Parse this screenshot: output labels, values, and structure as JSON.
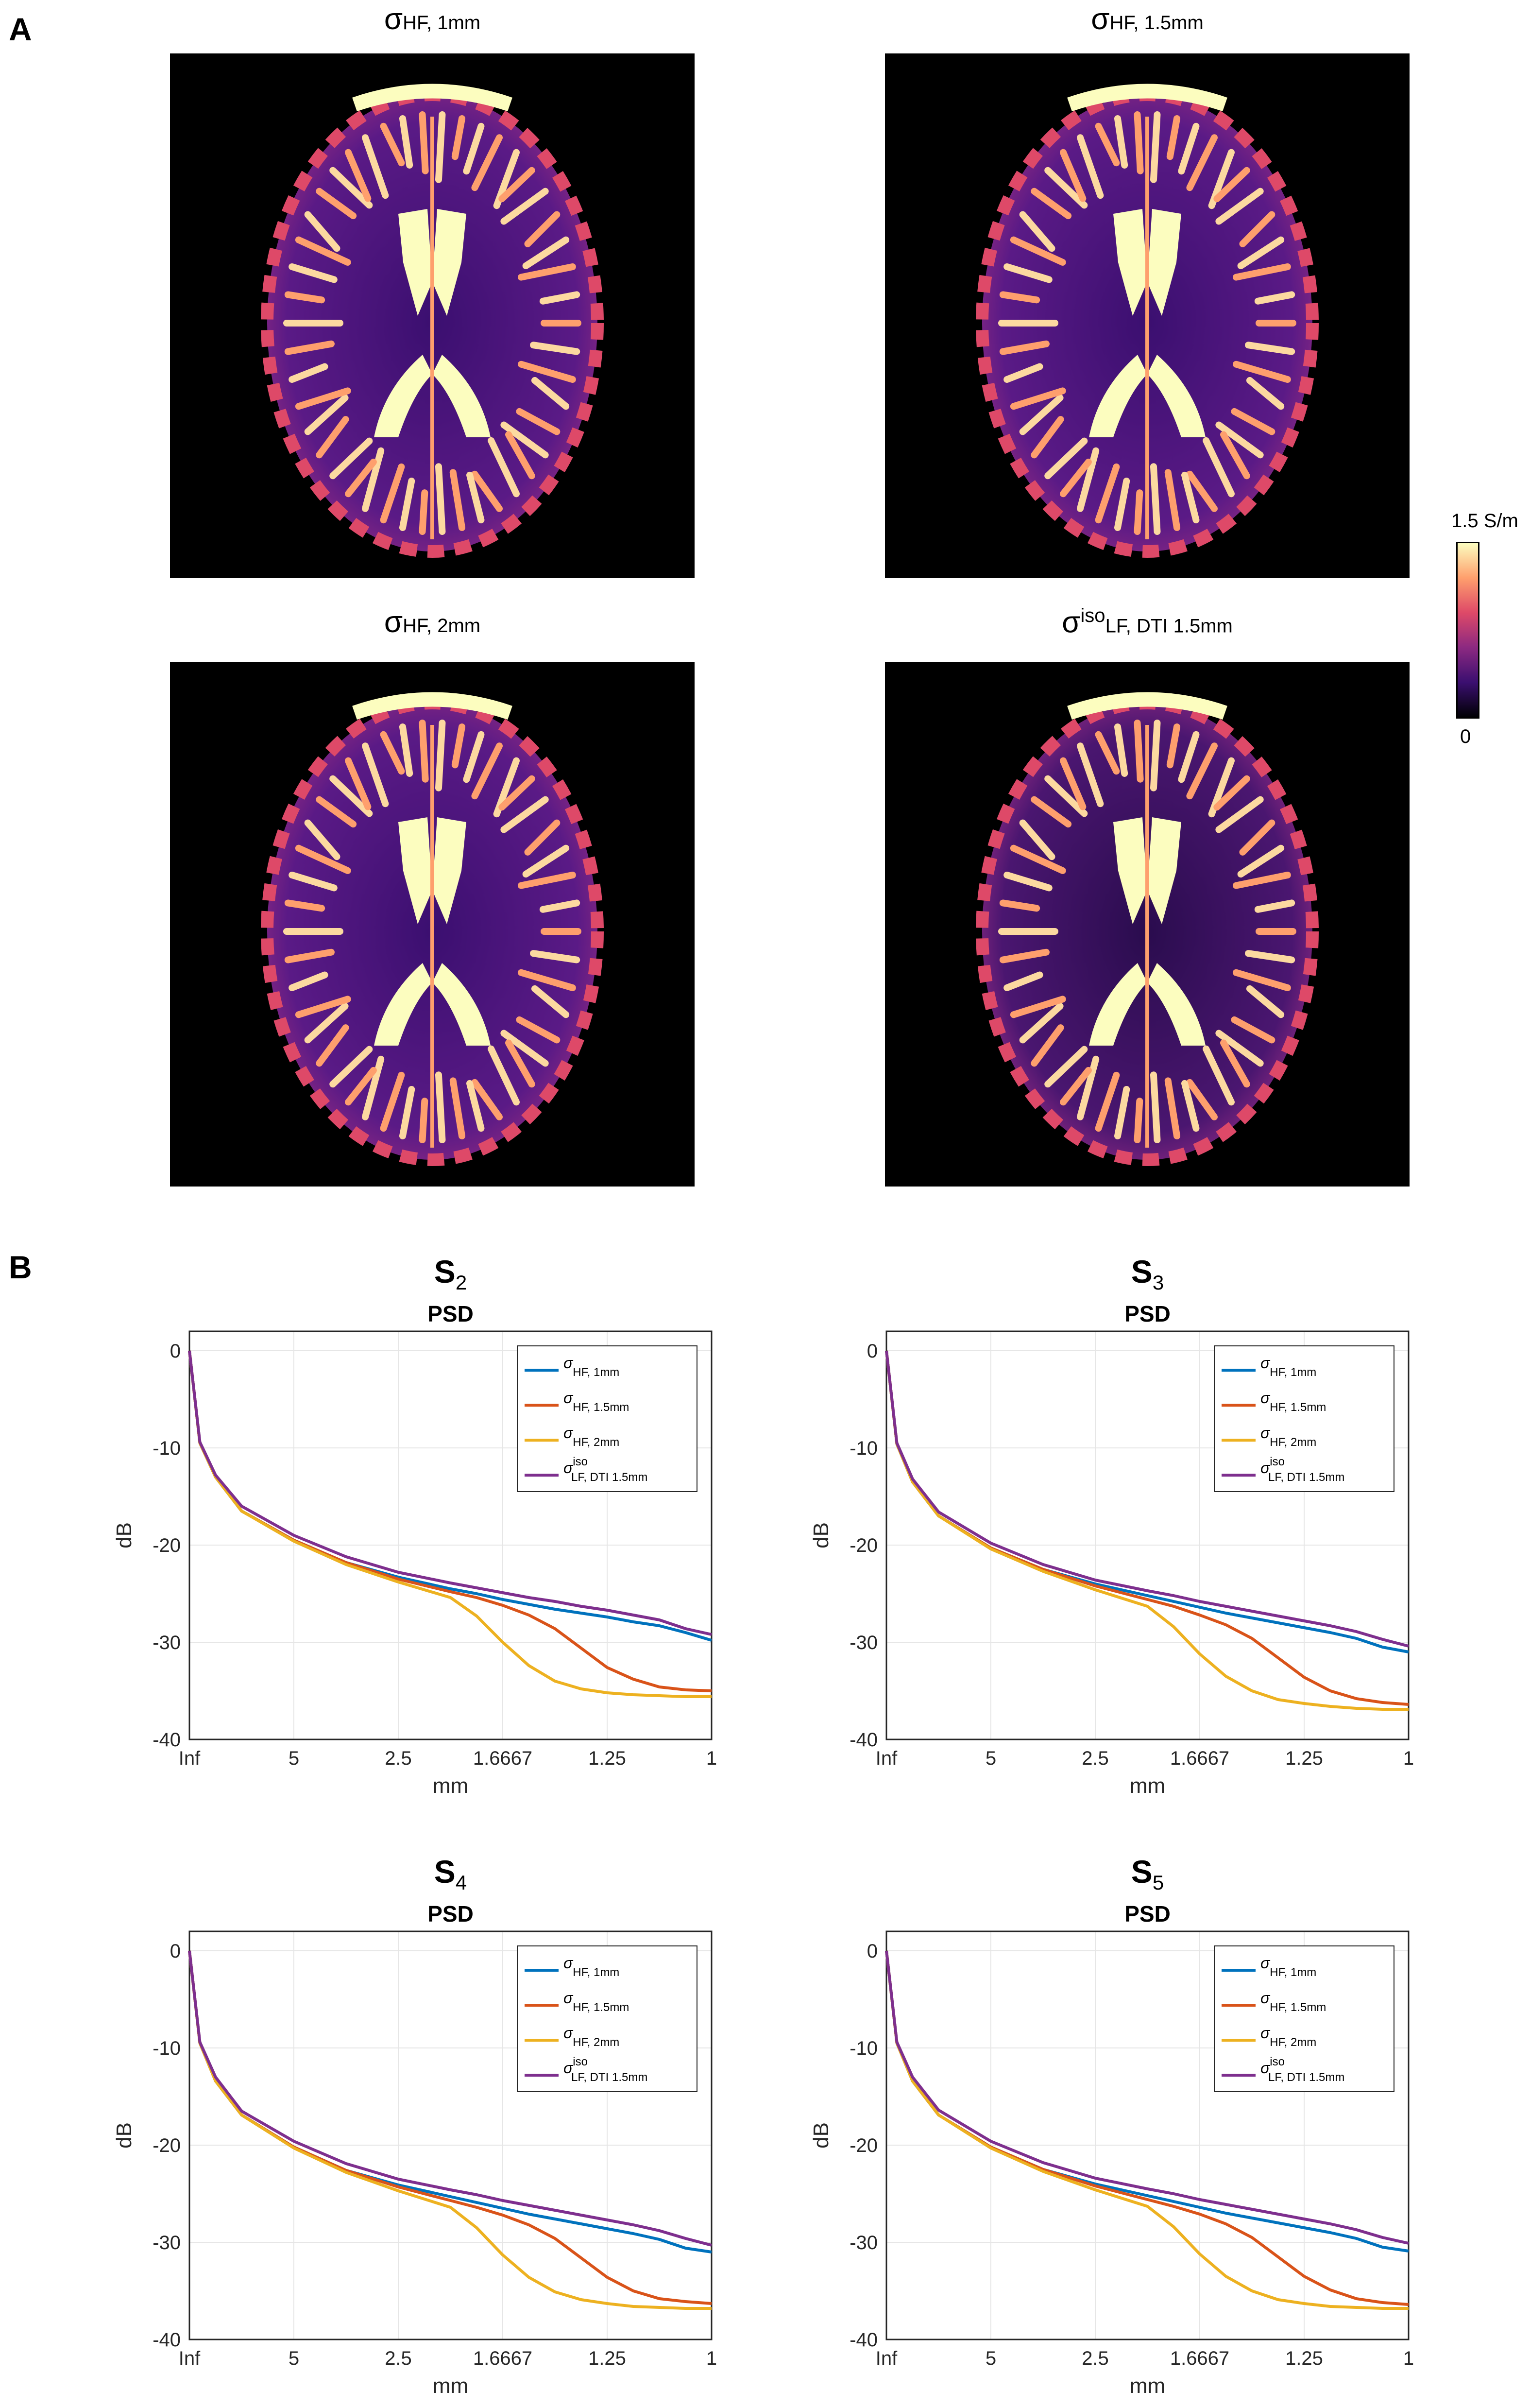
{
  "panel_labels": {
    "a": "A",
    "b": "B"
  },
  "maps": [
    {
      "title_main": "σ",
      "title_sup": "",
      "title_sub": "HF, 1mm"
    },
    {
      "title_main": "σ",
      "title_sup": "",
      "title_sub": "HF, 1.5mm"
    },
    {
      "title_main": "σ",
      "title_sup": "",
      "title_sub": "HF, 2mm"
    },
    {
      "title_main": "σ",
      "title_sup": "iso",
      "title_sub": "LF, DTI 1.5mm"
    }
  ],
  "colorbar": {
    "max_label": "1.5 S/m",
    "min_label": "0",
    "colormap": [
      "#000004",
      "#3b0f70",
      "#8c2981",
      "#de4968",
      "#fe9f6d",
      "#fcfdbf"
    ]
  },
  "colors": {
    "hf_1mm": "#0072BD",
    "hf_1_5mm": "#D95319",
    "hf_2mm": "#EDB120",
    "lf_dti": "#7E2F8E"
  },
  "chart_data": [
    {
      "type": "line",
      "title_main": "S",
      "title_sub": "2",
      "subtitle": "PSD",
      "xlabel": "mm",
      "ylabel": "dB",
      "xticks": [
        "Inf",
        "5",
        "2.5",
        "1.6667",
        "1.25",
        "1"
      ],
      "x_domain_note": "spatial frequency fraction 0..1, tick labels are wavelength",
      "yticks": [
        "0",
        "-10",
        "-20",
        "-30",
        "-40"
      ],
      "ylim": [
        -40,
        2
      ],
      "grid": true,
      "legend_position": "top-right",
      "x": [
        0,
        0.02,
        0.05,
        0.1,
        0.2,
        0.3,
        0.4,
        0.5,
        0.55,
        0.6,
        0.65,
        0.7,
        0.75,
        0.8,
        0.85,
        0.9,
        0.95,
        1.0
      ],
      "series": [
        {
          "name": "σ",
          "name_sub": "HF, 1mm",
          "values": [
            0,
            -9.5,
            -13,
            -16.5,
            -19.5,
            -21.8,
            -23.3,
            -24.5,
            -25.0,
            -25.6,
            -26.1,
            -26.6,
            -27.0,
            -27.4,
            -27.9,
            -28.3,
            -29.0,
            -29.8
          ]
        },
        {
          "name": "σ",
          "name_sub": "HF, 1.5mm",
          "values": [
            0,
            -9.5,
            -13,
            -16.5,
            -19.5,
            -21.8,
            -23.5,
            -24.8,
            -25.4,
            -26.2,
            -27.2,
            -28.6,
            -30.6,
            -32.6,
            -33.8,
            -34.6,
            -34.9,
            -35.0
          ]
        },
        {
          "name": "σ",
          "name_sub": "HF, 2mm",
          "values": [
            0,
            -9.5,
            -13,
            -16.5,
            -19.6,
            -22.0,
            -23.8,
            -25.4,
            -27.3,
            -30.0,
            -32.4,
            -34.0,
            -34.8,
            -35.2,
            -35.4,
            -35.5,
            -35.6,
            -35.6
          ]
        },
        {
          "name": "σ",
          "name_sup": "iso",
          "name_sub": "LF, DTI 1.5mm",
          "values": [
            0,
            -9.4,
            -12.8,
            -16.0,
            -19.0,
            -21.2,
            -22.8,
            -23.9,
            -24.4,
            -24.9,
            -25.4,
            -25.8,
            -26.3,
            -26.7,
            -27.2,
            -27.7,
            -28.6,
            -29.2
          ]
        }
      ]
    },
    {
      "type": "line",
      "title_main": "S",
      "title_sub": "3",
      "subtitle": "PSD",
      "xlabel": "mm",
      "ylabel": "dB",
      "xticks": [
        "Inf",
        "5",
        "2.5",
        "1.6667",
        "1.25",
        "1"
      ],
      "yticks": [
        "0",
        "-10",
        "-20",
        "-30",
        "-40"
      ],
      "ylim": [
        -40,
        2
      ],
      "grid": true,
      "legend_position": "top-right",
      "x": [
        0,
        0.02,
        0.05,
        0.1,
        0.2,
        0.3,
        0.4,
        0.5,
        0.55,
        0.6,
        0.65,
        0.7,
        0.75,
        0.8,
        0.85,
        0.9,
        0.95,
        1.0
      ],
      "series": [
        {
          "name": "σ",
          "name_sub": "HF, 1mm",
          "values": [
            0,
            -9.6,
            -13.5,
            -17.0,
            -20.3,
            -22.5,
            -24.0,
            -25.2,
            -25.8,
            -26.4,
            -27.0,
            -27.5,
            -28.0,
            -28.5,
            -29.0,
            -29.6,
            -30.5,
            -31.0
          ]
        },
        {
          "name": "σ",
          "name_sub": "HF, 1.5mm",
          "values": [
            0,
            -9.6,
            -13.5,
            -17.0,
            -20.3,
            -22.5,
            -24.2,
            -25.6,
            -26.3,
            -27.2,
            -28.2,
            -29.6,
            -31.6,
            -33.6,
            -35.0,
            -35.8,
            -36.2,
            -36.4
          ]
        },
        {
          "name": "σ",
          "name_sub": "HF, 2mm",
          "values": [
            0,
            -9.6,
            -13.5,
            -17.0,
            -20.4,
            -22.7,
            -24.6,
            -26.3,
            -28.4,
            -31.2,
            -33.5,
            -35.0,
            -35.9,
            -36.3,
            -36.6,
            -36.8,
            -36.9,
            -36.9
          ]
        },
        {
          "name": "σ",
          "name_sup": "iso",
          "name_sub": "LF, DTI 1.5mm",
          "values": [
            0,
            -9.5,
            -13.2,
            -16.6,
            -19.8,
            -22.0,
            -23.6,
            -24.7,
            -25.2,
            -25.8,
            -26.3,
            -26.8,
            -27.3,
            -27.8,
            -28.3,
            -28.9,
            -29.7,
            -30.4
          ]
        }
      ]
    },
    {
      "type": "line",
      "title_main": "S",
      "title_sub": "4",
      "subtitle": "PSD",
      "xlabel": "mm",
      "ylabel": "dB",
      "xticks": [
        "Inf",
        "5",
        "2.5",
        "1.6667",
        "1.25",
        "1"
      ],
      "yticks": [
        "0",
        "-10",
        "-20",
        "-30",
        "-40"
      ],
      "ylim": [
        -40,
        2
      ],
      "grid": true,
      "legend_position": "top-right",
      "x": [
        0,
        0.02,
        0.05,
        0.1,
        0.2,
        0.3,
        0.4,
        0.5,
        0.55,
        0.6,
        0.65,
        0.7,
        0.75,
        0.8,
        0.85,
        0.9,
        0.95,
        1.0
      ],
      "series": [
        {
          "name": "σ",
          "name_sub": "HF, 1mm",
          "values": [
            0,
            -9.5,
            -13.4,
            -16.9,
            -20.2,
            -22.6,
            -24.1,
            -25.3,
            -25.9,
            -26.5,
            -27.1,
            -27.6,
            -28.1,
            -28.6,
            -29.1,
            -29.7,
            -30.6,
            -31.0
          ]
        },
        {
          "name": "σ",
          "name_sub": "HF, 1.5mm",
          "values": [
            0,
            -9.5,
            -13.4,
            -16.9,
            -20.2,
            -22.6,
            -24.3,
            -25.7,
            -26.4,
            -27.2,
            -28.2,
            -29.6,
            -31.6,
            -33.6,
            -35.0,
            -35.8,
            -36.1,
            -36.3
          ]
        },
        {
          "name": "σ",
          "name_sub": "HF, 2mm",
          "values": [
            0,
            -9.5,
            -13.4,
            -16.9,
            -20.3,
            -22.8,
            -24.7,
            -26.4,
            -28.5,
            -31.3,
            -33.6,
            -35.1,
            -35.9,
            -36.3,
            -36.6,
            -36.7,
            -36.8,
            -36.8
          ]
        },
        {
          "name": "σ",
          "name_sup": "iso",
          "name_sub": "LF, DTI 1.5mm",
          "values": [
            0,
            -9.4,
            -13.0,
            -16.5,
            -19.6,
            -21.9,
            -23.5,
            -24.6,
            -25.1,
            -25.7,
            -26.2,
            -26.7,
            -27.2,
            -27.7,
            -28.2,
            -28.8,
            -29.6,
            -30.3
          ]
        }
      ]
    },
    {
      "type": "line",
      "title_main": "S",
      "title_sub": "5",
      "subtitle": "PSD",
      "xlabel": "mm",
      "ylabel": "dB",
      "xticks": [
        "Inf",
        "5",
        "2.5",
        "1.6667",
        "1.25",
        "1"
      ],
      "yticks": [
        "0",
        "-10",
        "-20",
        "-30",
        "-40"
      ],
      "ylim": [
        -40,
        2
      ],
      "grid": true,
      "legend_position": "top-right",
      "x": [
        0,
        0.02,
        0.05,
        0.1,
        0.2,
        0.3,
        0.4,
        0.5,
        0.55,
        0.6,
        0.65,
        0.7,
        0.75,
        0.8,
        0.85,
        0.9,
        0.95,
        1.0
      ],
      "series": [
        {
          "name": "σ",
          "name_sub": "HF, 1mm",
          "values": [
            0,
            -9.5,
            -13.4,
            -16.9,
            -20.2,
            -22.5,
            -24.0,
            -25.2,
            -25.8,
            -26.4,
            -27.0,
            -27.5,
            -28.0,
            -28.5,
            -29.0,
            -29.6,
            -30.5,
            -30.9
          ]
        },
        {
          "name": "σ",
          "name_sub": "HF, 1.5mm",
          "values": [
            0,
            -9.5,
            -13.4,
            -16.9,
            -20.2,
            -22.5,
            -24.2,
            -25.6,
            -26.3,
            -27.1,
            -28.1,
            -29.5,
            -31.5,
            -33.5,
            -34.9,
            -35.8,
            -36.2,
            -36.4
          ]
        },
        {
          "name": "σ",
          "name_sub": "HF, 2mm",
          "values": [
            0,
            -9.5,
            -13.4,
            -16.9,
            -20.3,
            -22.7,
            -24.6,
            -26.3,
            -28.4,
            -31.2,
            -33.5,
            -35.0,
            -35.9,
            -36.3,
            -36.6,
            -36.7,
            -36.8,
            -36.8
          ]
        },
        {
          "name": "σ",
          "name_sup": "iso",
          "name_sub": "LF, DTI 1.5mm",
          "values": [
            0,
            -9.4,
            -13.0,
            -16.4,
            -19.6,
            -21.8,
            -23.4,
            -24.5,
            -25.0,
            -25.6,
            -26.1,
            -26.6,
            -27.1,
            -27.6,
            -28.1,
            -28.7,
            -29.5,
            -30.1
          ]
        }
      ]
    }
  ]
}
